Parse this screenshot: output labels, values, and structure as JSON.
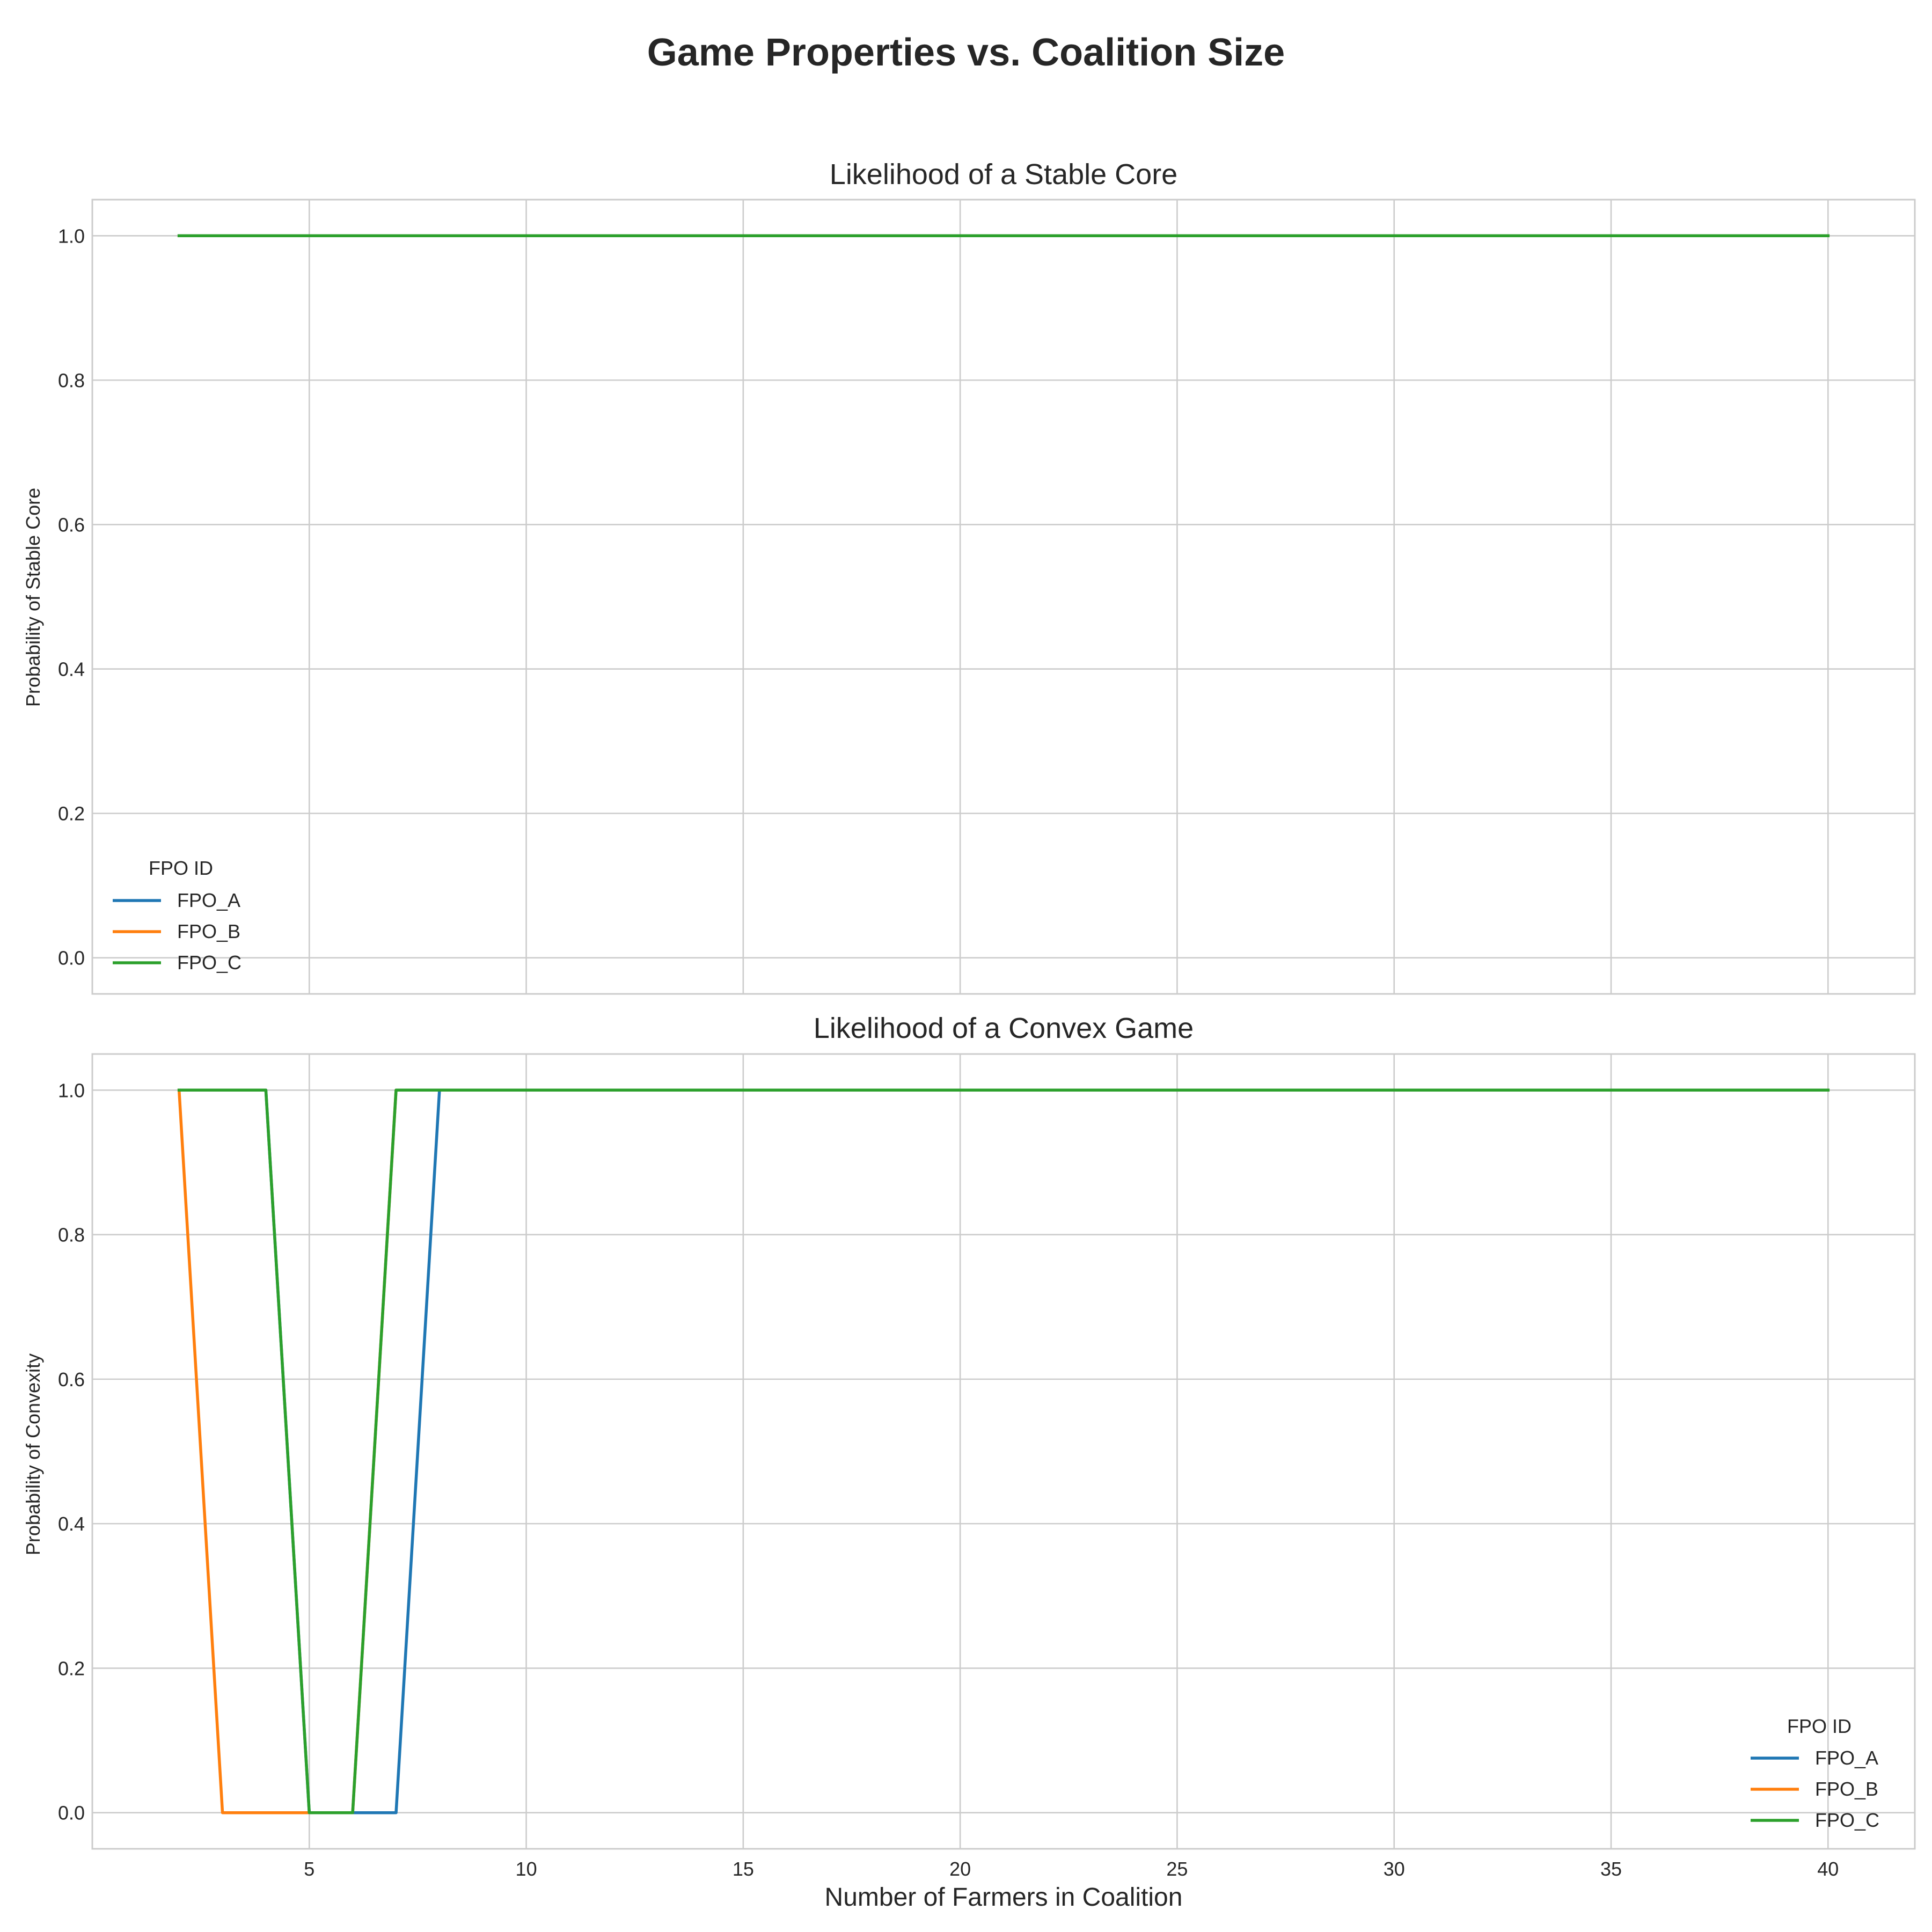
{
  "figure": {
    "suptitle": "Game Properties vs. Coalition Size"
  },
  "colors": {
    "FPO_A": "#1f77b4",
    "FPO_B": "#ff7f0e",
    "FPO_C": "#2ca02c",
    "grid": "#cccccc",
    "spine": "#cccccc",
    "text": "#262626"
  },
  "chart_data": [
    {
      "type": "line",
      "title": "Likelihood of a Stable Core",
      "xlabel": "",
      "ylabel": "Probability of Stable Core",
      "xlim": [
        0,
        42
      ],
      "ylim": [
        -0.05,
        1.05
      ],
      "xticks": [
        5,
        10,
        15,
        20,
        25,
        30,
        35,
        40
      ],
      "xticklabels_visible": false,
      "yticks": [
        0.0,
        0.2,
        0.4,
        0.6,
        0.8,
        1.0
      ],
      "ytick_labels": [
        "0.0",
        "0.2",
        "0.4",
        "0.6",
        "0.8",
        "1.0"
      ],
      "grid": true,
      "legend": {
        "title": "FPO ID",
        "placement": "lower-left",
        "entries": [
          "FPO_A",
          "FPO_B",
          "FPO_C"
        ]
      },
      "series": [
        {
          "name": "FPO_A",
          "x": [
            2,
            40
          ],
          "y": [
            1.0,
            1.0
          ]
        },
        {
          "name": "FPO_B",
          "x": [
            2,
            40
          ],
          "y": [
            1.0,
            1.0
          ]
        },
        {
          "name": "FPO_C",
          "x": [
            2,
            40
          ],
          "y": [
            1.0,
            1.0
          ]
        }
      ]
    },
    {
      "type": "line",
      "title": "Likelihood of a Convex Game",
      "xlabel": "Number of Farmers in Coalition",
      "ylabel": "Probability of Convexity",
      "xlim": [
        0,
        42
      ],
      "ylim": [
        -0.05,
        1.05
      ],
      "xticks": [
        5,
        10,
        15,
        20,
        25,
        30,
        35,
        40
      ],
      "xtick_labels": [
        "5",
        "10",
        "15",
        "20",
        "25",
        "30",
        "35",
        "40"
      ],
      "xticklabels_visible": true,
      "yticks": [
        0.0,
        0.2,
        0.4,
        0.6,
        0.8,
        1.0
      ],
      "ytick_labels": [
        "0.0",
        "0.2",
        "0.4",
        "0.6",
        "0.8",
        "1.0"
      ],
      "grid": true,
      "legend": {
        "title": "FPO ID",
        "placement": "lower-right",
        "entries": [
          "FPO_A",
          "FPO_B",
          "FPO_C"
        ]
      },
      "series": [
        {
          "name": "FPO_A",
          "x": [
            2,
            3,
            4,
            5,
            6,
            7,
            8,
            40
          ],
          "y": [
            1,
            1,
            1,
            0,
            0,
            0,
            1,
            1
          ]
        },
        {
          "name": "FPO_B",
          "x": [
            2,
            3,
            4,
            5,
            6,
            7,
            40
          ],
          "y": [
            1,
            0,
            0,
            0,
            0,
            1,
            1
          ]
        },
        {
          "name": "FPO_C",
          "x": [
            2,
            3,
            4,
            5,
            6,
            7,
            40
          ],
          "y": [
            1,
            1,
            1,
            0,
            0,
            1,
            1
          ]
        }
      ]
    }
  ]
}
